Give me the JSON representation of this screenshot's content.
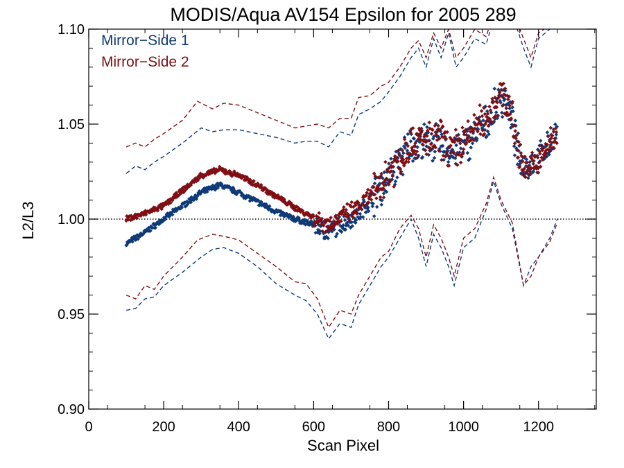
{
  "chart_data": {
    "type": "scatter",
    "title": "MODIS/Aqua AV154 Epsilon for 2005 289",
    "xlabel": "Scan Pixel",
    "ylabel": "L2/L3",
    "xlim": [
      0,
      1354
    ],
    "ylim": [
      0.9,
      1.1
    ],
    "x_ticks": [
      0,
      200,
      400,
      600,
      800,
      1000,
      1200
    ],
    "y_ticks": [
      0.9,
      0.95,
      1.0,
      1.05,
      1.1
    ],
    "x_tick_labels": [
      "0",
      "200",
      "400",
      "600",
      "800",
      "1000",
      "1200"
    ],
    "y_tick_labels": [
      "0.90",
      "0.95",
      "1.00",
      "1.05",
      "1.10"
    ],
    "reference_line": {
      "y": 1.0,
      "style": "dotted"
    },
    "legend_position": "top-left",
    "series": [
      {
        "name": "Mirror−Side 1",
        "color": "#0f3a78",
        "mean": [
          [
            100,
            0.987
          ],
          [
            150,
            0.993
          ],
          [
            200,
            1.0
          ],
          [
            250,
            1.007
          ],
          [
            300,
            1.014
          ],
          [
            350,
            1.018
          ],
          [
            400,
            1.014
          ],
          [
            450,
            1.009
          ],
          [
            500,
            1.004
          ],
          [
            550,
            1.0
          ],
          [
            600,
            0.997
          ],
          [
            640,
            0.993
          ],
          [
            680,
            0.998
          ],
          [
            720,
            1.003
          ],
          [
            760,
            1.012
          ],
          [
            800,
            1.022
          ],
          [
            830,
            1.03
          ],
          [
            860,
            1.04
          ],
          [
            900,
            1.04
          ],
          [
            940,
            1.04
          ],
          [
            970,
            1.035
          ],
          [
            1000,
            1.038
          ],
          [
            1030,
            1.045
          ],
          [
            1060,
            1.05
          ],
          [
            1090,
            1.06
          ],
          [
            1110,
            1.065
          ],
          [
            1130,
            1.05
          ],
          [
            1150,
            1.03
          ],
          [
            1170,
            1.028
          ],
          [
            1200,
            1.032
          ],
          [
            1230,
            1.04
          ],
          [
            1250,
            1.045
          ]
        ],
        "upper": [
          [
            100,
            1.024
          ],
          [
            125,
            1.028
          ],
          [
            150,
            1.026
          ],
          [
            175,
            1.03
          ],
          [
            200,
            1.033
          ],
          [
            250,
            1.04
          ],
          [
            300,
            1.048
          ],
          [
            330,
            1.046
          ],
          [
            360,
            1.047
          ],
          [
            400,
            1.047
          ],
          [
            450,
            1.045
          ],
          [
            500,
            1.043
          ],
          [
            550,
            1.04
          ],
          [
            580,
            1.041
          ],
          [
            610,
            1.041
          ],
          [
            640,
            1.038
          ],
          [
            670,
            1.046
          ],
          [
            700,
            1.044
          ],
          [
            720,
            1.055
          ],
          [
            750,
            1.058
          ],
          [
            780,
            1.062
          ],
          [
            800,
            1.067
          ],
          [
            830,
            1.075
          ],
          [
            860,
            1.085
          ],
          [
            880,
            1.09
          ],
          [
            900,
            1.08
          ],
          [
            920,
            1.095
          ],
          [
            940,
            1.085
          ],
          [
            960,
            1.098
          ],
          [
            980,
            1.08
          ],
          [
            1000,
            1.085
          ],
          [
            1030,
            1.095
          ],
          [
            1060,
            1.092
          ],
          [
            1080,
            1.105
          ],
          [
            1100,
            1.11
          ],
          [
            1130,
            1.108
          ],
          [
            1160,
            1.09
          ],
          [
            1180,
            1.08
          ],
          [
            1200,
            1.095
          ],
          [
            1230,
            1.1
          ],
          [
            1250,
            1.11
          ]
        ],
        "lower": [
          [
            100,
            0.952
          ],
          [
            125,
            0.953
          ],
          [
            150,
            0.958
          ],
          [
            175,
            0.959
          ],
          [
            200,
            0.965
          ],
          [
            250,
            0.972
          ],
          [
            300,
            0.98
          ],
          [
            330,
            0.984
          ],
          [
            360,
            0.985
          ],
          [
            400,
            0.982
          ],
          [
            450,
            0.975
          ],
          [
            500,
            0.966
          ],
          [
            550,
            0.96
          ],
          [
            580,
            0.957
          ],
          [
            610,
            0.95
          ],
          [
            640,
            0.937
          ],
          [
            670,
            0.945
          ],
          [
            700,
            0.943
          ],
          [
            720,
            0.955
          ],
          [
            750,
            0.965
          ],
          [
            780,
            0.975
          ],
          [
            800,
            0.98
          ],
          [
            830,
            0.99
          ],
          [
            860,
            1.0
          ],
          [
            880,
            0.99
          ],
          [
            900,
            0.975
          ],
          [
            920,
            0.992
          ],
          [
            940,
            0.985
          ],
          [
            960,
            0.975
          ],
          [
            975,
            0.965
          ],
          [
            1000,
            0.985
          ],
          [
            1030,
            0.99
          ],
          [
            1060,
            1.005
          ],
          [
            1080,
            1.02
          ],
          [
            1100,
            1.008
          ],
          [
            1130,
            0.995
          ],
          [
            1160,
            0.965
          ],
          [
            1180,
            0.975
          ],
          [
            1200,
            0.98
          ],
          [
            1230,
            0.99
          ],
          [
            1250,
            1.0
          ]
        ]
      },
      {
        "name": "Mirror−Side 2",
        "color": "#800f14",
        "mean": [
          [
            100,
            1.0
          ],
          [
            150,
            1.003
          ],
          [
            200,
            1.007
          ],
          [
            250,
            1.015
          ],
          [
            300,
            1.023
          ],
          [
            350,
            1.026
          ],
          [
            400,
            1.023
          ],
          [
            450,
            1.018
          ],
          [
            500,
            1.012
          ],
          [
            550,
            1.006
          ],
          [
            600,
            1.001
          ],
          [
            640,
            0.997
          ],
          [
            680,
            1.002
          ],
          [
            720,
            1.006
          ],
          [
            760,
            1.014
          ],
          [
            800,
            1.024
          ],
          [
            830,
            1.032
          ],
          [
            860,
            1.041
          ],
          [
            900,
            1.041
          ],
          [
            940,
            1.042
          ],
          [
            970,
            1.036
          ],
          [
            1000,
            1.04
          ],
          [
            1030,
            1.048
          ],
          [
            1060,
            1.053
          ],
          [
            1090,
            1.063
          ],
          [
            1110,
            1.066
          ],
          [
            1130,
            1.052
          ],
          [
            1150,
            1.032
          ],
          [
            1170,
            1.027
          ],
          [
            1200,
            1.03
          ],
          [
            1230,
            1.04
          ],
          [
            1250,
            1.047
          ]
        ],
        "upper": [
          [
            100,
            1.038
          ],
          [
            125,
            1.04
          ],
          [
            150,
            1.038
          ],
          [
            175,
            1.042
          ],
          [
            200,
            1.045
          ],
          [
            250,
            1.052
          ],
          [
            290,
            1.062
          ],
          [
            330,
            1.058
          ],
          [
            360,
            1.061
          ],
          [
            400,
            1.06
          ],
          [
            450,
            1.056
          ],
          [
            500,
            1.052
          ],
          [
            550,
            1.048
          ],
          [
            580,
            1.049
          ],
          [
            610,
            1.05
          ],
          [
            640,
            1.048
          ],
          [
            670,
            1.053
          ],
          [
            700,
            1.053
          ],
          [
            720,
            1.064
          ],
          [
            750,
            1.065
          ],
          [
            780,
            1.07
          ],
          [
            800,
            1.072
          ],
          [
            830,
            1.08
          ],
          [
            860,
            1.09
          ],
          [
            880,
            1.094
          ],
          [
            900,
            1.085
          ],
          [
            920,
            1.098
          ],
          [
            940,
            1.09
          ],
          [
            960,
            1.1
          ],
          [
            980,
            1.085
          ],
          [
            1000,
            1.09
          ],
          [
            1030,
            1.1
          ],
          [
            1060,
            1.096
          ],
          [
            1080,
            1.108
          ],
          [
            1100,
            1.112
          ],
          [
            1130,
            1.11
          ],
          [
            1160,
            1.095
          ],
          [
            1180,
            1.085
          ],
          [
            1200,
            1.098
          ],
          [
            1230,
            1.102
          ],
          [
            1250,
            1.112
          ]
        ],
        "lower": [
          [
            100,
            0.96
          ],
          [
            125,
            0.958
          ],
          [
            150,
            0.965
          ],
          [
            175,
            0.963
          ],
          [
            200,
            0.97
          ],
          [
            250,
            0.98
          ],
          [
            290,
            0.989
          ],
          [
            330,
            0.992
          ],
          [
            360,
            0.991
          ],
          [
            400,
            0.989
          ],
          [
            450,
            0.982
          ],
          [
            500,
            0.975
          ],
          [
            550,
            0.967
          ],
          [
            580,
            0.966
          ],
          [
            610,
            0.958
          ],
          [
            640,
            0.943
          ],
          [
            670,
            0.952
          ],
          [
            700,
            0.95
          ],
          [
            720,
            0.96
          ],
          [
            750,
            0.97
          ],
          [
            780,
            0.98
          ],
          [
            800,
            0.983
          ],
          [
            830,
            0.995
          ],
          [
            860,
            1.002
          ],
          [
            880,
            0.995
          ],
          [
            900,
            0.98
          ],
          [
            920,
            0.997
          ],
          [
            940,
            0.99
          ],
          [
            960,
            0.98
          ],
          [
            975,
            0.97
          ],
          [
            1000,
            0.99
          ],
          [
            1030,
            0.995
          ],
          [
            1060,
            1.008
          ],
          [
            1080,
            1.022
          ],
          [
            1100,
            1.01
          ],
          [
            1130,
            0.998
          ],
          [
            1160,
            0.965
          ],
          [
            1180,
            0.97
          ],
          [
            1200,
            0.98
          ],
          [
            1230,
            0.988
          ],
          [
            1250,
            0.998
          ]
        ]
      }
    ]
  }
}
